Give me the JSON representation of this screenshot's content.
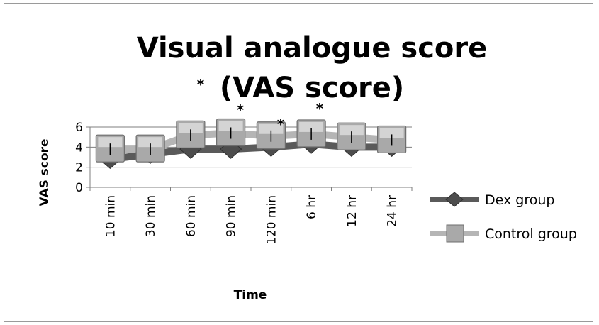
{
  "chart_data": {
    "type": "line",
    "title": "Visual analogue score (VAS score)",
    "xlabel": "Time",
    "ylabel": "VAS score",
    "categories": [
      "10 min",
      "30 min",
      "60 min",
      "90 min",
      "120 min",
      "6 hr",
      "12 hr",
      "24 hr"
    ],
    "ylim": [
      0,
      6
    ],
    "yticks": [
      "0",
      "2",
      "4",
      "6"
    ],
    "series": [
      {
        "name": "Dex group",
        "values": [
          2.8,
          3.3,
          3.8,
          3.8,
          4.0,
          4.3,
          4.0,
          4.0
        ],
        "color": "#5a5a5a",
        "marker": "diamond"
      },
      {
        "name": "Control group",
        "values": [
          3.8,
          3.8,
          5.2,
          5.4,
          5.1,
          5.3,
          5.0,
          4.7
        ],
        "color": "#b5b5b5",
        "marker": "square"
      }
    ],
    "significance_marker": "*",
    "legend_position": "right",
    "grid": "horizontal"
  }
}
